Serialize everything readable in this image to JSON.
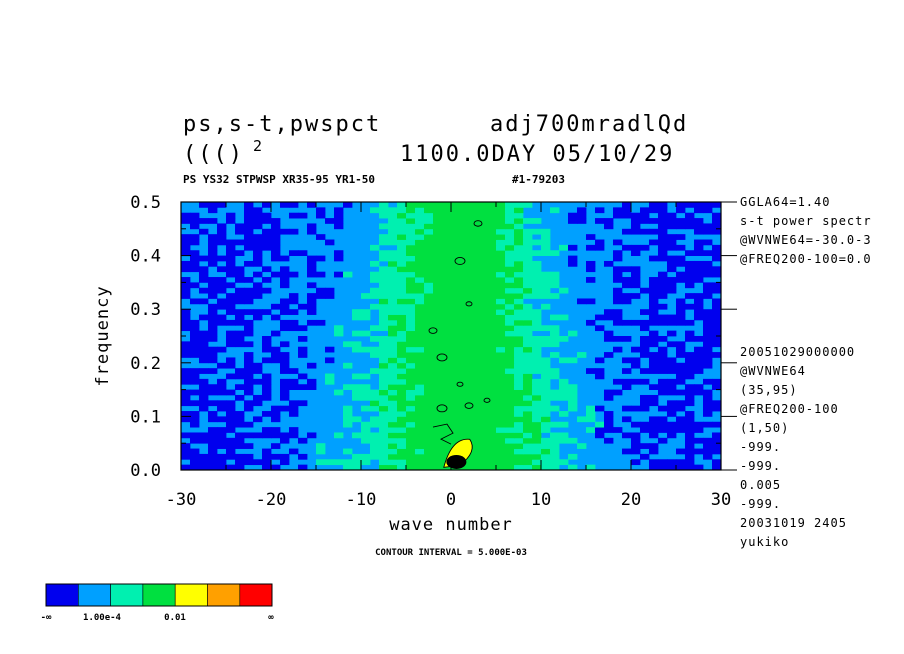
{
  "header": {
    "title_left_1": "ps,s-t,pwspct",
    "title_right_1": "adj700mradlQd",
    "title_left_2": "((()",
    "title_left_2_sup": "2",
    "title_right_2": "1100.0DAY 05/10/29",
    "subtitle_left": "PS YS32 STPWSP XR35-95 YR1-50",
    "subtitle_right": "#1-79203",
    "contour_note": "CONTOUR INTERVAL = 5.000E-03"
  },
  "side_info": [
    "GGLA64=1.40",
    "s-t power spectr",
    "@WVNWE64=-30.0-3",
    "@FREQ200-100=0.0"
  ],
  "side_info_2": [
    "20051029000000",
    "@WVNWE64",
    "(35,95)",
    "@FREQ200-100",
    "(1,50)",
    "-999.",
    "-999.",
    "0.005",
    "-999.",
    "20031019    2405",
    "yukiko"
  ],
  "colors": {
    "level0": "#0000ee",
    "level1": "#00a0ff",
    "level2": "#00f0b0",
    "level3": "#00e040",
    "level4": "#ffff00",
    "level5": "#ffa000",
    "level6": "#ff0000",
    "contour": "#000000"
  },
  "colorbar": {
    "labels": [
      "-∞",
      "1.00e-4",
      "0.01",
      "∞"
    ]
  },
  "chart_data": {
    "type": "heatmap",
    "title": "ps,s-t,pwspct",
    "xlabel": "wave number",
    "ylabel": "frequency",
    "xlim": [
      -30,
      30
    ],
    "ylim": [
      0.0,
      0.5
    ],
    "x_ticks": [
      -30,
      -20,
      -10,
      0,
      10,
      20,
      30
    ],
    "x_tick_labels": [
      "-30",
      "-20",
      "-10",
      "0",
      "10",
      "20",
      "30"
    ],
    "y_ticks": [
      0.0,
      0.1,
      0.2,
      0.3,
      0.4,
      0.5
    ],
    "y_tick_labels": [
      "0.0",
      "0.1",
      "0.2",
      "0.3",
      "0.4",
      "0.5"
    ],
    "contour_interval": 0.005,
    "grid": false,
    "legend": "colorbar bottom-left"
  }
}
